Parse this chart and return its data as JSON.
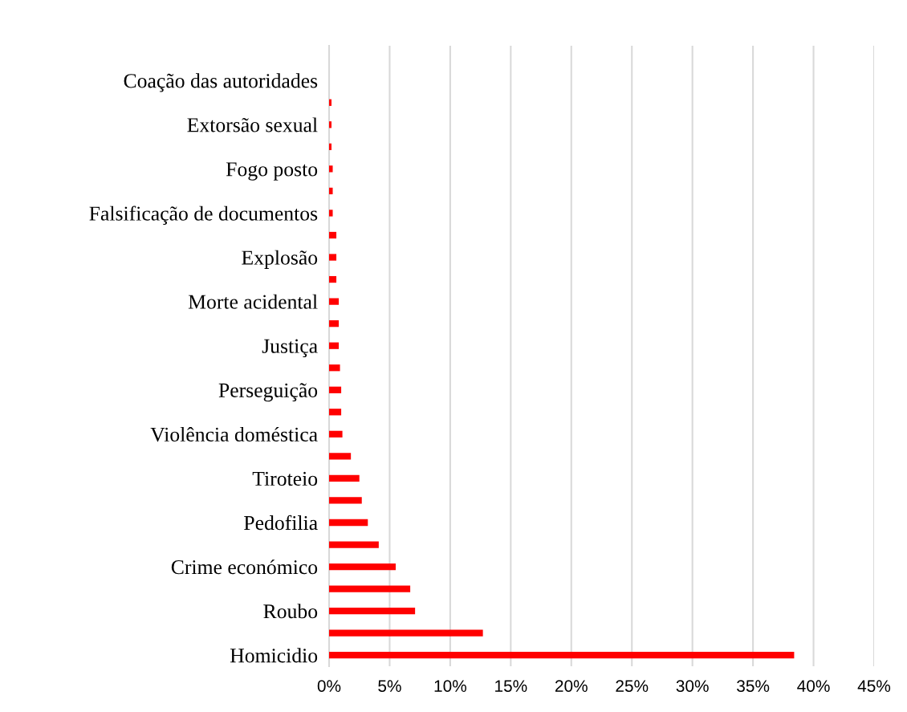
{
  "chart_data": {
    "type": "bar",
    "orientation": "horizontal",
    "categories": [
      "Coação das autoridades",
      null,
      "Extorsão sexual",
      null,
      "Fogo posto",
      null,
      "Falsificação de documentos",
      null,
      "Explosão",
      null,
      "Morte acidental",
      null,
      "Justiça",
      null,
      "Perseguição",
      null,
      "Violência doméstica",
      null,
      "Tiroteio",
      null,
      "Pedofilia",
      null,
      "Crime económico",
      null,
      "Roubo",
      null,
      "Homicidio"
    ],
    "values": [
      0,
      0.2,
      0.2,
      0.2,
      0.3,
      0.3,
      0.3,
      0.6,
      0.6,
      0.6,
      0.8,
      0.8,
      0.8,
      0.9,
      1.0,
      1.0,
      1.1,
      1.8,
      2.5,
      2.7,
      3.2,
      4.1,
      5.5,
      6.7,
      7.1,
      12.7,
      38.4
    ],
    "color": "#ff0000",
    "xlim": [
      0,
      45
    ],
    "xticks": [
      {
        "value": 0,
        "label": "0%"
      },
      {
        "value": 5,
        "label": "5%"
      },
      {
        "value": 10,
        "label": "10%"
      },
      {
        "value": 15,
        "label": "15%"
      },
      {
        "value": 20,
        "label": "20%"
      },
      {
        "value": 25,
        "label": "25%"
      },
      {
        "value": 30,
        "label": "30%"
      },
      {
        "value": 35,
        "label": "35%"
      },
      {
        "value": 40,
        "label": "40%"
      },
      {
        "value": 45,
        "label": "45%"
      }
    ],
    "grid": "x"
  }
}
